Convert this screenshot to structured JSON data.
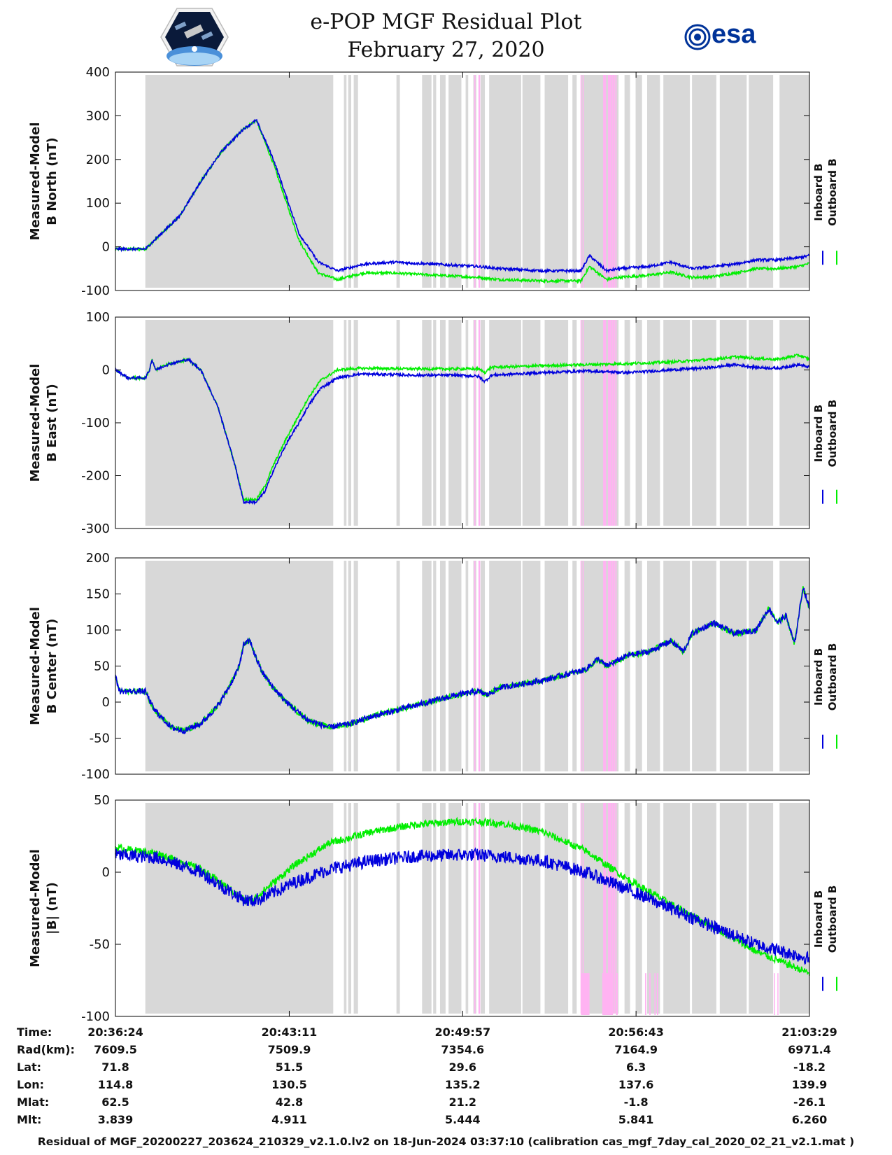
{
  "title": {
    "line1": "e-POP MGF Residual Plot",
    "line2": "February 27, 2020"
  },
  "logos": {
    "left": "cassiope-mission-logo",
    "right": "esa-logo",
    "right_text": "esa"
  },
  "colors": {
    "inboard": "#0000dd",
    "outboard": "#00ee00",
    "shade_gray": "#d8d8d8",
    "shade_pink": "#ffb3f2"
  },
  "legend": {
    "inboard": "Inboard B",
    "outboard": "Outboard B"
  },
  "time_axis": {
    "range_seconds": [
      0,
      1625
    ],
    "tick_seconds": [
      0,
      407,
      813,
      1219,
      1625
    ]
  },
  "shaded_intervals": {
    "gray": [
      [
        70,
        510
      ],
      [
        535,
        541
      ],
      [
        545,
        552
      ],
      [
        558,
        568
      ],
      [
        658,
        666
      ],
      [
        718,
        740
      ],
      [
        744,
        751
      ],
      [
        760,
        773
      ],
      [
        780,
        810
      ],
      [
        820,
        826
      ],
      [
        838,
        845
      ],
      [
        855,
        865
      ],
      [
        875,
        950
      ],
      [
        953,
        995
      ],
      [
        1005,
        1060
      ],
      [
        1070,
        1080
      ],
      [
        1090,
        1143
      ],
      [
        1147,
        1178
      ],
      [
        1192,
        1205
      ],
      [
        1218,
        1233
      ],
      [
        1245,
        1275
      ],
      [
        1283,
        1345
      ],
      [
        1350,
        1407
      ],
      [
        1415,
        1478
      ],
      [
        1483,
        1540
      ],
      [
        1555,
        1625
      ]
    ],
    "pink": [
      [
        840,
        843
      ],
      [
        850,
        854
      ],
      [
        1089,
        1091
      ],
      [
        1094,
        1096
      ],
      [
        1142,
        1149
      ],
      [
        1153,
        1162
      ],
      [
        1163,
        1166
      ],
      [
        1167,
        1170
      ],
      [
        1171,
        1172
      ]
    ],
    "pink_low_panel4": [
      [
        1090,
        1110
      ],
      [
        1140,
        1165
      ],
      [
        1172,
        1176
      ],
      [
        1240,
        1243
      ],
      [
        1250,
        1253
      ],
      [
        1262,
        1265
      ],
      [
        1268,
        1271
      ],
      [
        1542,
        1544
      ],
      [
        1550,
        1552
      ]
    ]
  },
  "chart_data": [
    {
      "type": "line",
      "panel": "b-north",
      "ylabel": [
        "Measured-Model",
        "B North (nT)"
      ],
      "ylim": [
        -100,
        400
      ],
      "yticks": [
        -100,
        0,
        100,
        200,
        300,
        400
      ],
      "ytick_labels": [
        "-100",
        "0",
        "100",
        "200",
        "300",
        "400"
      ],
      "noise": {
        "inboard": 3,
        "outboard": 3
      },
      "series": [
        {
          "name": "Inboard B",
          "x": [
            0,
            70,
            150,
            200,
            250,
            300,
            330,
            370,
            430,
            475,
            520,
            580,
            650,
            750,
            850,
            900,
            1000,
            1090,
            1110,
            1150,
            1180,
            1250,
            1300,
            1350,
            1400,
            1450,
            1500,
            1550,
            1600,
            1625
          ],
          "y": [
            -5,
            -5,
            70,
            150,
            220,
            270,
            290,
            200,
            30,
            -35,
            -55,
            -40,
            -35,
            -40,
            -45,
            -50,
            -55,
            -55,
            -20,
            -55,
            -50,
            -45,
            -35,
            -50,
            -45,
            -40,
            -30,
            -30,
            -25,
            -20
          ]
        },
        {
          "name": "Outboard B",
          "x": [
            0,
            70,
            150,
            200,
            250,
            300,
            330,
            370,
            430,
            475,
            520,
            580,
            650,
            750,
            850,
            900,
            1000,
            1090,
            1110,
            1150,
            1180,
            1250,
            1300,
            1350,
            1400,
            1450,
            1500,
            1550,
            1600,
            1625
          ],
          "y": [
            -5,
            -5,
            70,
            150,
            220,
            270,
            290,
            190,
            15,
            -60,
            -75,
            -60,
            -60,
            -65,
            -70,
            -75,
            -78,
            -78,
            -45,
            -75,
            -70,
            -65,
            -58,
            -70,
            -68,
            -60,
            -50,
            -50,
            -45,
            -38
          ]
        }
      ]
    },
    {
      "type": "line",
      "panel": "b-east",
      "ylabel": [
        "Measured-Model",
        "B East (nT)"
      ],
      "ylim": [
        -300,
        100
      ],
      "yticks": [
        -300,
        -200,
        -100,
        0,
        100
      ],
      "ytick_labels": [
        "-300",
        "-200",
        "-100",
        "0",
        "100"
      ],
      "noise": {
        "inboard": 2.5,
        "outboard": 2.5
      },
      "series": [
        {
          "name": "Inboard B",
          "x": [
            0,
            30,
            70,
            80,
            85,
            95,
            120,
            170,
            200,
            240,
            280,
            300,
            330,
            350,
            370,
            400,
            430,
            450,
            480,
            520,
            570,
            620,
            700,
            800,
            850,
            865,
            880,
            1000,
            1100,
            1200,
            1300,
            1400,
            1450,
            1500,
            1550,
            1600,
            1625
          ],
          "y": [
            0,
            -15,
            -15,
            0,
            20,
            0,
            10,
            20,
            0,
            -70,
            -180,
            -250,
            -250,
            -230,
            -190,
            -140,
            -100,
            -70,
            -35,
            -15,
            -8,
            -8,
            -10,
            -10,
            -12,
            -22,
            -10,
            -5,
            -2,
            -5,
            0,
            5,
            10,
            5,
            3,
            10,
            5
          ]
        },
        {
          "name": "Outboard B",
          "x": [
            0,
            30,
            70,
            80,
            85,
            95,
            120,
            170,
            200,
            240,
            280,
            300,
            330,
            350,
            370,
            400,
            430,
            450,
            480,
            520,
            570,
            620,
            700,
            800,
            850,
            865,
            880,
            1000,
            1100,
            1200,
            1300,
            1400,
            1450,
            1500,
            1550,
            1600,
            1625
          ],
          "y": [
            0,
            -15,
            -15,
            0,
            20,
            0,
            10,
            20,
            0,
            -70,
            -180,
            -245,
            -245,
            -220,
            -180,
            -130,
            -85,
            -55,
            -20,
            0,
            3,
            3,
            2,
            2,
            2,
            -5,
            5,
            8,
            10,
            12,
            15,
            20,
            25,
            22,
            20,
            28,
            20
          ]
        }
      ]
    },
    {
      "type": "line",
      "panel": "b-center",
      "ylabel": [
        "Measured-Model",
        "B Center (nT)"
      ],
      "ylim": [
        -100,
        200
      ],
      "yticks": [
        -100,
        -50,
        0,
        50,
        100,
        150,
        200
      ],
      "ytick_labels": [
        "-100",
        "-50",
        "0",
        "50",
        "100",
        "150",
        "200"
      ],
      "noise": {
        "inboard": 4,
        "outboard": 4
      },
      "series": [
        {
          "name": "Inboard B",
          "x": [
            0,
            10,
            40,
            70,
            90,
            130,
            160,
            200,
            240,
            270,
            290,
            300,
            315,
            330,
            345,
            370,
            400,
            450,
            500,
            550,
            600,
            700,
            800,
            850,
            870,
            900,
            1000,
            1100,
            1130,
            1150,
            1200,
            1250,
            1300,
            1330,
            1350,
            1400,
            1450,
            1500,
            1530,
            1550,
            1570,
            1590,
            1610,
            1625
          ],
          "y": [
            35,
            15,
            15,
            15,
            -10,
            -35,
            -40,
            -30,
            -5,
            25,
            50,
            80,
            85,
            60,
            40,
            20,
            0,
            -25,
            -35,
            -30,
            -20,
            -5,
            10,
            15,
            10,
            20,
            30,
            45,
            60,
            50,
            65,
            70,
            85,
            70,
            95,
            110,
            95,
            100,
            130,
            110,
            120,
            80,
            160,
            130
          ]
        },
        {
          "name": "Outboard B",
          "x": [
            0,
            10,
            40,
            70,
            90,
            130,
            160,
            200,
            240,
            270,
            290,
            300,
            315,
            330,
            345,
            370,
            400,
            450,
            500,
            550,
            600,
            700,
            800,
            850,
            870,
            900,
            1000,
            1100,
            1130,
            1150,
            1200,
            1250,
            1300,
            1330,
            1350,
            1400,
            1450,
            1500,
            1530,
            1550,
            1570,
            1590,
            1610,
            1625
          ],
          "y": [
            35,
            15,
            15,
            15,
            -10,
            -35,
            -40,
            -30,
            -5,
            25,
            50,
            80,
            85,
            60,
            40,
            20,
            0,
            -25,
            -35,
            -30,
            -20,
            -5,
            10,
            15,
            10,
            20,
            30,
            45,
            60,
            50,
            65,
            70,
            85,
            70,
            95,
            110,
            95,
            100,
            130,
            110,
            120,
            80,
            160,
            130
          ]
        }
      ]
    },
    {
      "type": "line",
      "panel": "b-magnitude",
      "ylabel": [
        "Measured-Model",
        "|B| (nT)"
      ],
      "ylim": [
        -100,
        50
      ],
      "yticks": [
        -100,
        -50,
        0,
        50
      ],
      "ytick_labels": [
        "-100",
        "-50",
        "0",
        "50"
      ],
      "noise": {
        "inboard": 4.5,
        "outboard": 2.5
      },
      "series": [
        {
          "name": "Inboard B",
          "x": [
            0,
            100,
            200,
            260,
            300,
            320,
            350,
            420,
            500,
            600,
            700,
            800,
            850,
            900,
            1000,
            1100,
            1200,
            1300,
            1400,
            1500,
            1625
          ],
          "y": [
            12,
            10,
            0,
            -12,
            -19,
            -20,
            -17,
            -7,
            2,
            8,
            11,
            12,
            12,
            11,
            8,
            0,
            -12,
            -25,
            -38,
            -50,
            -60
          ]
        },
        {
          "name": "Outboard B",
          "x": [
            0,
            100,
            200,
            260,
            300,
            320,
            350,
            420,
            500,
            600,
            700,
            800,
            850,
            900,
            1000,
            1100,
            1200,
            1300,
            1400,
            1500,
            1625
          ],
          "y": [
            17,
            13,
            2,
            -10,
            -19,
            -20,
            -12,
            5,
            20,
            28,
            33,
            35,
            35,
            34,
            28,
            15,
            -5,
            -22,
            -38,
            -55,
            -70
          ]
        }
      ]
    }
  ],
  "ephemeris": {
    "rows": [
      {
        "label": "Time:",
        "values": [
          "20:36:24",
          "20:43:11",
          "20:49:57",
          "20:56:43",
          "21:03:29"
        ]
      },
      {
        "label": "Rad(km):",
        "values": [
          "7609.5",
          "7509.9",
          "7354.6",
          "7164.9",
          "6971.4"
        ]
      },
      {
        "label": "Lat:",
        "values": [
          "71.8",
          "51.5",
          "29.6",
          "6.3",
          "-18.2"
        ]
      },
      {
        "label": "Lon:",
        "values": [
          "114.8",
          "130.5",
          "135.2",
          "137.6",
          "139.9"
        ]
      },
      {
        "label": "Mlat:",
        "values": [
          "62.5",
          "42.8",
          "21.2",
          "-1.8",
          "-26.1"
        ]
      },
      {
        "label": "Mlt:",
        "values": [
          "3.839",
          "4.911",
          "5.444",
          "5.841",
          "6.260"
        ]
      }
    ]
  },
  "footer": "Residual of MGF_20200227_203624_210329_v2.1.0.lv2 on 18-Jun-2024 03:37:10 (calibration cas_mgf_7day_cal_2020_02_21_v2.1.mat )"
}
